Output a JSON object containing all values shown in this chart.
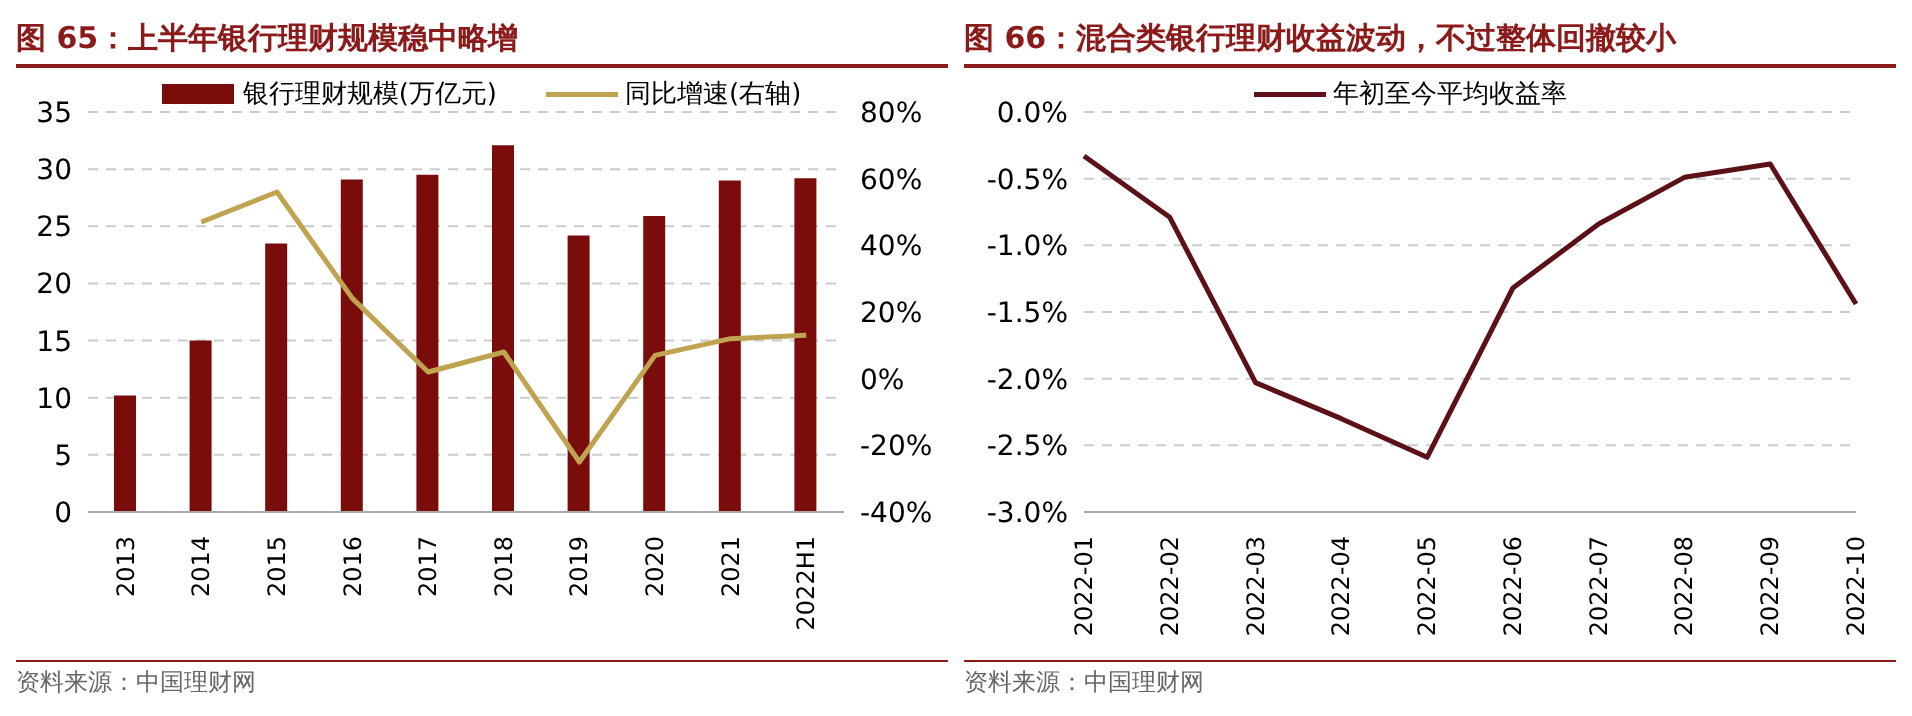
{
  "chart_data": [
    {
      "type": "bar",
      "title": "图 65：上半年银行理财规模稳中略增",
      "categories": [
        "2013",
        "2014",
        "2015",
        "2016",
        "2017",
        "2018",
        "2019",
        "2020",
        "2021",
        "2022H1"
      ],
      "series": [
        {
          "name": "银行理财规模(万亿元)",
          "color": "#7b0c0c",
          "values": [
            10.2,
            15.0,
            23.5,
            29.1,
            29.5,
            32.1,
            24.2,
            25.9,
            29.0,
            29.2
          ]
        },
        {
          "name": "同比增速(右轴)",
          "type": "line",
          "axis": "y2",
          "color": "#bfa350",
          "values": [
            null,
            47,
            56,
            24,
            2,
            8,
            -25,
            7,
            12,
            13
          ]
        }
      ],
      "ylim": [
        0,
        35
      ],
      "yticks": [
        0,
        5,
        10,
        15,
        20,
        25,
        30,
        35
      ],
      "y2lim": [
        -40,
        80
      ],
      "y2ticks": [
        {
          "value": -40,
          "label": "-40%"
        },
        {
          "value": -20,
          "label": "-20%"
        },
        {
          "value": 0,
          "label": "0%"
        },
        {
          "value": 20,
          "label": "20%"
        },
        {
          "value": 40,
          "label": "40%"
        },
        {
          "value": 60,
          "label": "60%"
        },
        {
          "value": 80,
          "label": "80%"
        }
      ],
      "grid": "y",
      "legend": "top",
      "annotations": [
        "资料来源：中国理财网"
      ]
    },
    {
      "type": "line",
      "title": "图 66：混合类银行理财收益波动，不过整体回撤较小",
      "categories": [
        "2022-01",
        "2022-02",
        "2022-03",
        "2022-04",
        "2022-05",
        "2022-06",
        "2022-07",
        "2022-08",
        "2022-09",
        "2022-10"
      ],
      "series": [
        {
          "name": "年初至今平均收益率",
          "color": "#5c1018",
          "values": [
            -0.33,
            -0.79,
            -2.03,
            -2.3,
            -2.59,
            -1.32,
            -0.84,
            -0.49,
            -0.39,
            -1.44
          ]
        }
      ],
      "ylim": [
        -3,
        0
      ],
      "yticks": [
        {
          "value": -3,
          "label": "-3.0%"
        },
        {
          "value": -2.5,
          "label": "-2.5%"
        },
        {
          "value": -2,
          "label": "-2.0%"
        },
        {
          "value": -1.5,
          "label": "-1.5%"
        },
        {
          "value": -1,
          "label": "-1.0%"
        },
        {
          "value": -0.5,
          "label": "-0.5%"
        },
        {
          "value": 0,
          "label": "0.0%"
        }
      ],
      "grid": "y",
      "legend": "top",
      "annotations": [
        "资料来源：中国理财网"
      ]
    }
  ]
}
